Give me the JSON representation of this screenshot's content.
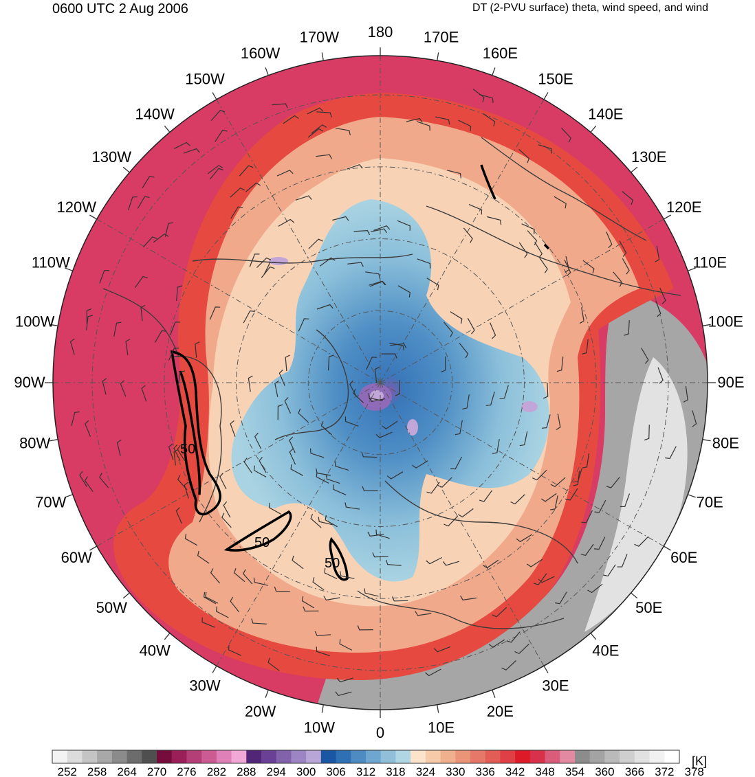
{
  "header": {
    "valid_time": "0600 UTC 2 Aug 2006",
    "product": "DT (2-PVU surface) theta, wind speed, and wind"
  },
  "map": {
    "projection": "north-polar-stereographic",
    "longitude_labels": [
      "180",
      "170E",
      "160E",
      "150E",
      "140E",
      "130E",
      "120E",
      "110E",
      "100E",
      "90E",
      "80E",
      "70E",
      "60E",
      "50E",
      "40E",
      "30E",
      "20E",
      "10E",
      "0",
      "10W",
      "20W",
      "30W",
      "40W",
      "50W",
      "60W",
      "70W",
      "80W",
      "90W",
      "100W",
      "110W",
      "120W",
      "130W",
      "140W",
      "150W",
      "160W",
      "170W"
    ],
    "contour_labels": [
      "50",
      "50",
      "50"
    ],
    "wind_speed_contour_value": 50,
    "colors": {
      "cold_core": "#2a6fb5",
      "cool_ring": "#a6d2e0",
      "transition": "#f6c9a9",
      "warm": "#ee6b56",
      "hot": "#e11d26",
      "tropical": "#d63e6a",
      "deep_tropics_gray": "#a7a7a7"
    }
  },
  "colorbar": {
    "tick_labels": [
      "252",
      "258",
      "264",
      "270",
      "276",
      "282",
      "288",
      "294",
      "300",
      "306",
      "312",
      "318",
      "324",
      "330",
      "336",
      "342",
      "348",
      "354",
      "360",
      "366",
      "372",
      "378"
    ],
    "colors": [
      "#f3f3f3",
      "#dcdcdc",
      "#c4c4c4",
      "#a8a8a8",
      "#8b8b8b",
      "#6c6c6c",
      "#4f4f4f",
      "#750c3c",
      "#9a1e58",
      "#b43e76",
      "#cb5b92",
      "#e080b8",
      "#f1a8d6",
      "#512679",
      "#6a3f96",
      "#8362ac",
      "#9d85c3",
      "#b8a6d6",
      "#1956a3",
      "#2f6fb4",
      "#4e8bc3",
      "#6ea6cf",
      "#90bfd9",
      "#b0d6e3",
      "#fbe3cc",
      "#f6cbaa",
      "#f0b08e",
      "#ea9478",
      "#e57868",
      "#e25d55",
      "#df4045",
      "#dd1b28",
      "#d8314a",
      "#d95c7a",
      "#e38aa2",
      "#8c8c8c",
      "#a3a3a3",
      "#bababa",
      "#cfcfcf",
      "#e1e1e1",
      "#f1f1f1",
      "#ffffff"
    ],
    "units": "[K]"
  }
}
